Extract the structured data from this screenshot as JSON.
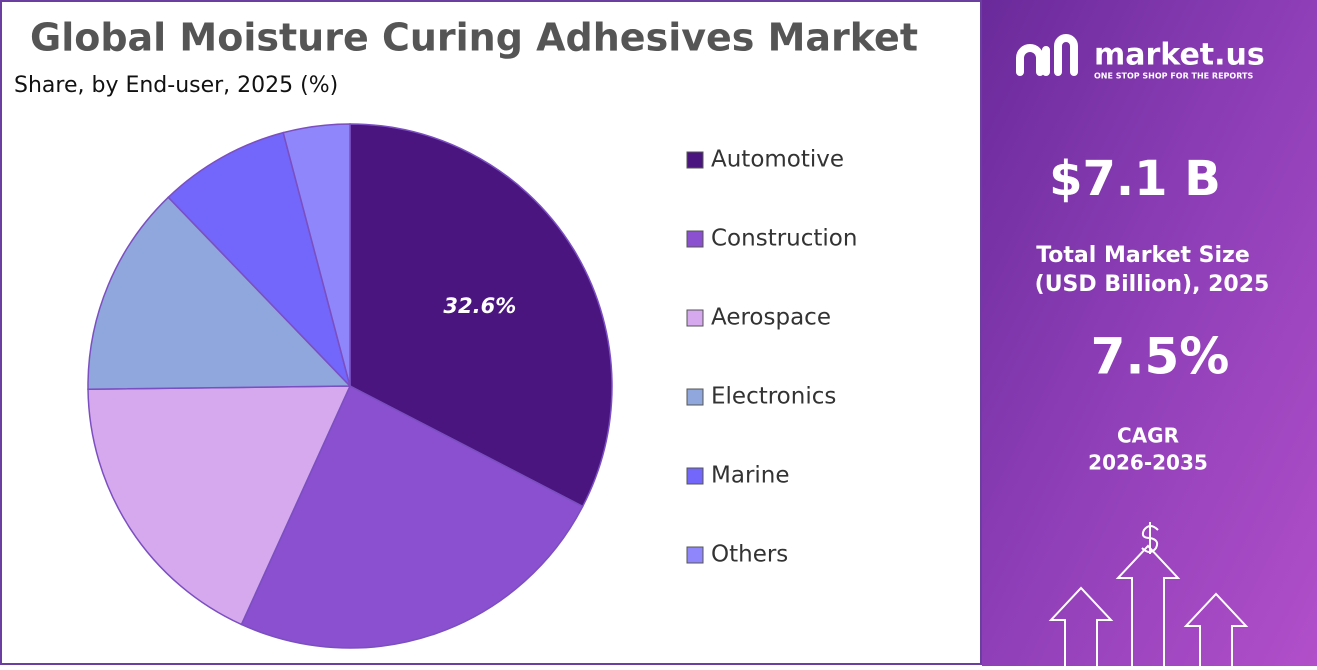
{
  "chart_data": {
    "type": "pie",
    "title": "Global Moisture Curing Adhesives Market",
    "subtitle": "Share, by End-user, 2025 (%)",
    "categories": [
      "Automotive",
      "Construction",
      "Aerospace",
      "Electronics",
      "Marine",
      "Others"
    ],
    "values": [
      32.6,
      24.2,
      18.0,
      13.0,
      8.1,
      4.1
    ],
    "value_labels": [
      "32.6%",
      null,
      null,
      null,
      null,
      null
    ],
    "colors": [
      "#4b1580",
      "#8a50d0",
      "#d6a8ee",
      "#8fa7dc",
      "#7366fb",
      "#8f86fb"
    ],
    "legend": "right"
  },
  "panel": {
    "brand": "market.us",
    "tagline": "ONE STOP SHOP FOR THE REPORTS",
    "market_size": "$7.1 B",
    "market_size_label": [
      "Total Market Size",
      "(USD Billion), 2025"
    ],
    "cagr": "7.5%",
    "cagr_label": [
      "CAGR",
      "2026-2035"
    ]
  }
}
